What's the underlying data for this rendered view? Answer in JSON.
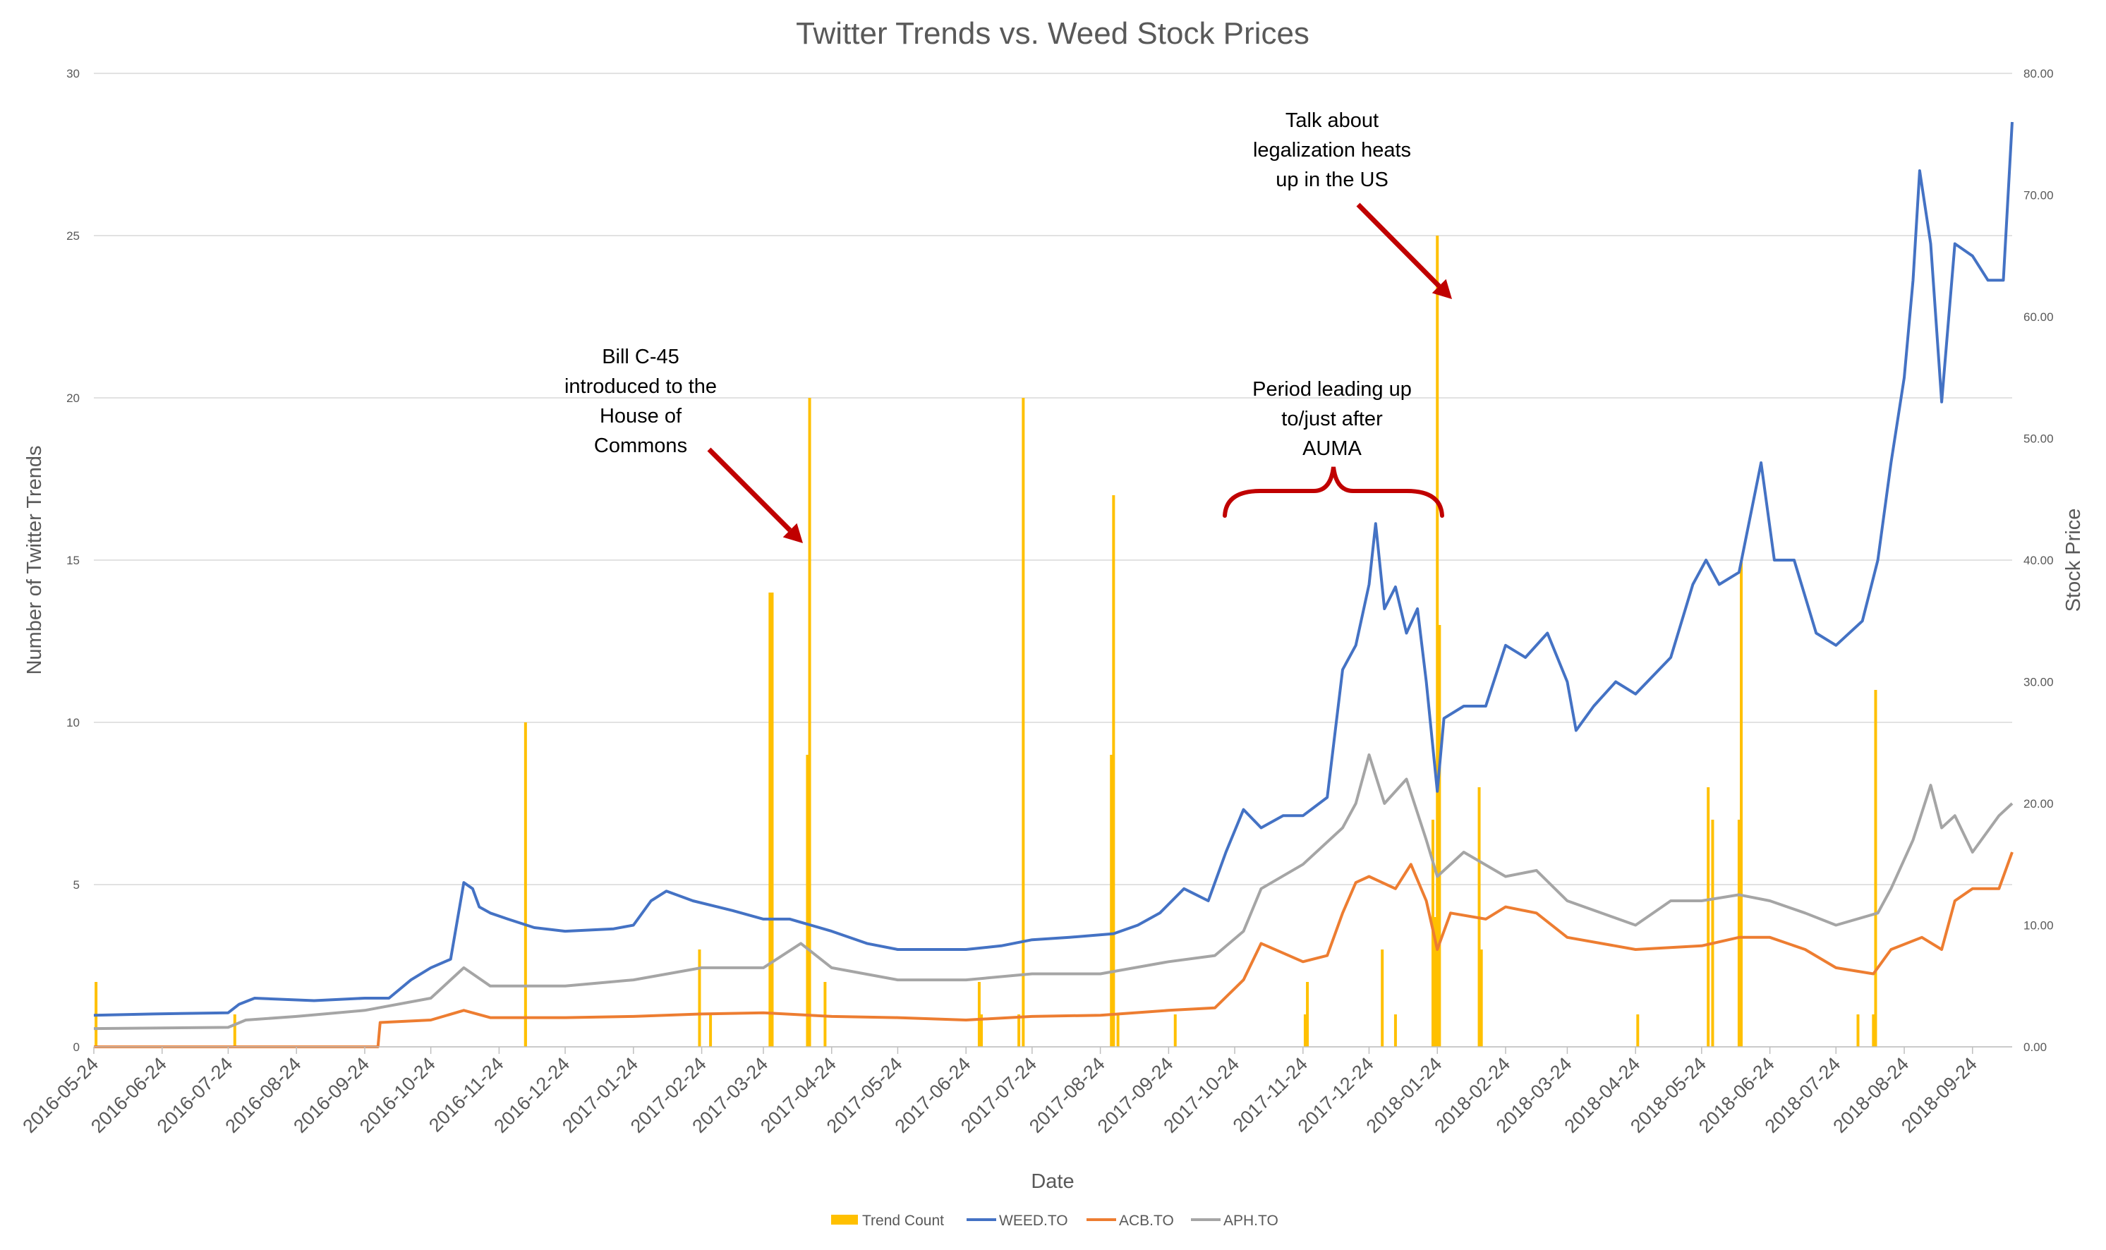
{
  "chart_data": {
    "type": "bar+line",
    "title": "Twitter Trends vs. Weed Stock Prices",
    "xlabel": "Date",
    "ylabel_left": "Number of Twitter Trends",
    "ylabel_right": "Stock Price",
    "ylim_left": [
      0,
      30
    ],
    "ylim_right": [
      0,
      80
    ],
    "xlim": [
      "2016-05-24",
      "2018-10-12"
    ],
    "grid": true,
    "legend_position": "bottom",
    "y_ticks_left": [
      "0",
      "5",
      "10",
      "15",
      "20",
      "25",
      "30"
    ],
    "y_ticks_right": [
      "0.00",
      "10.00",
      "20.00",
      "30.00",
      "40.00",
      "50.00",
      "60.00",
      "70.00",
      "80.00"
    ],
    "x_ticks": [
      "2016-05-24",
      "2016-06-24",
      "2016-07-24",
      "2016-08-24",
      "2016-09-24",
      "2016-10-24",
      "2016-11-24",
      "2016-12-24",
      "2017-01-24",
      "2017-02-24",
      "2017-03-24",
      "2017-04-24",
      "2017-05-24",
      "2017-06-24",
      "2017-07-24",
      "2017-08-24",
      "2017-09-24",
      "2017-10-24",
      "2017-11-24",
      "2017-12-24",
      "2018-01-24",
      "2018-02-24",
      "2018-03-24",
      "2018-04-24",
      "2018-05-24",
      "2018-06-24",
      "2018-07-24",
      "2018-08-24",
      "2018-09-24"
    ],
    "bars": {
      "name": "Trend Count",
      "color": "#FFC000",
      "points": [
        [
          "2016-05-25",
          2
        ],
        [
          "2016-07-27",
          1
        ],
        [
          "2016-12-06",
          10
        ],
        [
          "2016-12-06",
          1
        ],
        [
          "2017-02-23",
          3
        ],
        [
          "2017-02-28",
          1
        ],
        [
          "2017-03-27",
          14
        ],
        [
          "2017-03-28",
          14
        ],
        [
          "2017-04-13",
          9
        ],
        [
          "2017-04-14",
          20
        ],
        [
          "2017-04-21",
          2
        ],
        [
          "2017-06-30",
          2
        ],
        [
          "2017-07-01",
          1
        ],
        [
          "2017-07-18",
          1
        ],
        [
          "2017-07-20",
          20
        ],
        [
          "2017-08-29",
          9
        ],
        [
          "2017-08-30",
          17
        ],
        [
          "2017-09-01",
          1
        ],
        [
          "2017-09-27",
          1
        ],
        [
          "2017-11-25",
          1
        ],
        [
          "2017-11-26",
          2
        ],
        [
          "2017-12-33",
          0
        ],
        [
          "2017-12-30",
          3
        ],
        [
          "2018-01-05",
          1
        ],
        [
          "2018-01-22",
          7
        ],
        [
          "2018-01-23",
          4
        ],
        [
          "2018-01-24",
          25
        ],
        [
          "2018-01-25",
          13
        ],
        [
          "2018-02-12",
          8
        ],
        [
          "2018-02-13",
          3
        ],
        [
          "2018-04-25",
          1
        ],
        [
          "2018-05-27",
          8
        ],
        [
          "2018-05-29",
          7
        ],
        [
          "2018-06-10",
          7
        ],
        [
          "2018-06-11",
          15
        ],
        [
          "2018-08-03",
          1
        ],
        [
          "2018-08-10",
          1
        ],
        [
          "2018-08-11",
          11
        ]
      ]
    },
    "series": [
      {
        "name": "WEED.TO",
        "color": "#4472C4",
        "points": [
          [
            "2016-05-24",
            2.6
          ],
          [
            "2016-06-20",
            2.7
          ],
          [
            "2016-07-24",
            2.8
          ],
          [
            "2016-07-29",
            3.5
          ],
          [
            "2016-08-05",
            4.0
          ],
          [
            "2016-09-01",
            3.8
          ],
          [
            "2016-09-24",
            4.0
          ],
          [
            "2016-10-05",
            4.0
          ],
          [
            "2016-10-15",
            5.5
          ],
          [
            "2016-10-24",
            6.5
          ],
          [
            "2016-11-02",
            7.2
          ],
          [
            "2016-11-08",
            13.5
          ],
          [
            "2016-11-12",
            13.0
          ],
          [
            "2016-11-15",
            11.5
          ],
          [
            "2016-11-20",
            11.0
          ],
          [
            "2016-11-28",
            10.5
          ],
          [
            "2016-12-10",
            9.8
          ],
          [
            "2016-12-24",
            9.5
          ],
          [
            "2017-01-15",
            9.7
          ],
          [
            "2017-01-24",
            10.0
          ],
          [
            "2017-02-01",
            12.0
          ],
          [
            "2017-02-08",
            12.8
          ],
          [
            "2017-02-20",
            12.0
          ],
          [
            "2017-03-10",
            11.2
          ],
          [
            "2017-03-24",
            10.5
          ],
          [
            "2017-04-05",
            10.5
          ],
          [
            "2017-04-24",
            9.5
          ],
          [
            "2017-05-10",
            8.5
          ],
          [
            "2017-05-24",
            8.0
          ],
          [
            "2017-06-10",
            8.0
          ],
          [
            "2017-06-24",
            8.0
          ],
          [
            "2017-07-10",
            8.3
          ],
          [
            "2017-07-24",
            8.8
          ],
          [
            "2017-08-10",
            9.0
          ],
          [
            "2017-08-30",
            9.3
          ],
          [
            "2017-09-10",
            10.0
          ],
          [
            "2017-09-20",
            11.0
          ],
          [
            "2017-10-01",
            13.0
          ],
          [
            "2017-10-12",
            12.0
          ],
          [
            "2017-10-20",
            16.0
          ],
          [
            "2017-10-28",
            19.5
          ],
          [
            "2017-11-05",
            18.0
          ],
          [
            "2017-11-15",
            19.0
          ],
          [
            "2017-11-24",
            19.0
          ],
          [
            "2017-12-05",
            20.5
          ],
          [
            "2017-12-12",
            31.0
          ],
          [
            "2017-12-18",
            33.0
          ],
          [
            "2017-12-24",
            38.0
          ],
          [
            "2017-12-27",
            43.0
          ],
          [
            "2017-12-31",
            36.0
          ],
          [
            "2018-01-05",
            37.8
          ],
          [
            "2018-01-10",
            34.0
          ],
          [
            "2018-01-15",
            36.0
          ],
          [
            "2018-01-19",
            30.0
          ],
          [
            "2018-01-24",
            21.0
          ],
          [
            "2018-01-27",
            27.0
          ],
          [
            "2018-02-05",
            28.0
          ],
          [
            "2018-02-15",
            28.0
          ],
          [
            "2018-02-24",
            33.0
          ],
          [
            "2018-03-05",
            32.0
          ],
          [
            "2018-03-15",
            34.0
          ],
          [
            "2018-03-24",
            30.0
          ],
          [
            "2018-03-28",
            26.0
          ],
          [
            "2018-04-05",
            28.0
          ],
          [
            "2018-04-15",
            30.0
          ],
          [
            "2018-04-24",
            29.0
          ],
          [
            "2018-05-10",
            32.0
          ],
          [
            "2018-05-20",
            38.0
          ],
          [
            "2018-05-26",
            40.0
          ],
          [
            "2018-06-01",
            38.0
          ],
          [
            "2018-06-10",
            39.0
          ],
          [
            "2018-06-20",
            48.0
          ],
          [
            "2018-06-26",
            40.0
          ],
          [
            "2018-07-05",
            40.0
          ],
          [
            "2018-07-15",
            34.0
          ],
          [
            "2018-07-24",
            33.0
          ],
          [
            "2018-08-05",
            35.0
          ],
          [
            "2018-08-12",
            40.0
          ],
          [
            "2018-08-18",
            48.0
          ],
          [
            "2018-08-24",
            55.0
          ],
          [
            "2018-08-28",
            63.0
          ],
          [
            "2018-08-31",
            72.0
          ],
          [
            "2018-09-05",
            66.0
          ],
          [
            "2018-09-10",
            53.0
          ],
          [
            "2018-09-16",
            66.0
          ],
          [
            "2018-09-24",
            65.0
          ],
          [
            "2018-10-01",
            63.0
          ],
          [
            "2018-10-08",
            63.0
          ],
          [
            "2018-10-12",
            76.0
          ]
        ]
      },
      {
        "name": "ACB.TO",
        "color": "#ED7D31",
        "points": [
          [
            "2016-05-24",
            0.0
          ],
          [
            "2016-09-30",
            0.0
          ],
          [
            "2016-10-01",
            2.0
          ],
          [
            "2016-10-24",
            2.2
          ],
          [
            "2016-11-08",
            3.0
          ],
          [
            "2016-11-20",
            2.4
          ],
          [
            "2016-12-24",
            2.4
          ],
          [
            "2017-01-24",
            2.5
          ],
          [
            "2017-02-24",
            2.7
          ],
          [
            "2017-03-24",
            2.8
          ],
          [
            "2017-04-24",
            2.5
          ],
          [
            "2017-05-24",
            2.4
          ],
          [
            "2017-06-24",
            2.2
          ],
          [
            "2017-07-24",
            2.5
          ],
          [
            "2017-08-24",
            2.6
          ],
          [
            "2017-09-24",
            3.0
          ],
          [
            "2017-10-15",
            3.2
          ],
          [
            "2017-10-28",
            5.5
          ],
          [
            "2017-11-05",
            8.5
          ],
          [
            "2017-11-24",
            7.0
          ],
          [
            "2017-12-05",
            7.5
          ],
          [
            "2017-12-12",
            11.0
          ],
          [
            "2017-12-18",
            13.5
          ],
          [
            "2017-12-24",
            14.0
          ],
          [
            "2018-01-05",
            13.0
          ],
          [
            "2018-01-12",
            15.0
          ],
          [
            "2018-01-19",
            12.0
          ],
          [
            "2018-01-24",
            8.0
          ],
          [
            "2018-01-30",
            11.0
          ],
          [
            "2018-02-15",
            10.5
          ],
          [
            "2018-02-24",
            11.5
          ],
          [
            "2018-03-10",
            11.0
          ],
          [
            "2018-03-24",
            9.0
          ],
          [
            "2018-04-24",
            8.0
          ],
          [
            "2018-05-24",
            8.3
          ],
          [
            "2018-06-10",
            9.0
          ],
          [
            "2018-06-24",
            9.0
          ],
          [
            "2018-07-10",
            8.0
          ],
          [
            "2018-07-24",
            6.5
          ],
          [
            "2018-08-10",
            6.0
          ],
          [
            "2018-08-18",
            8.0
          ],
          [
            "2018-09-01",
            9.0
          ],
          [
            "2018-09-10",
            8.0
          ],
          [
            "2018-09-16",
            12.0
          ],
          [
            "2018-09-24",
            13.0
          ],
          [
            "2018-10-06",
            13.0
          ],
          [
            "2018-10-12",
            16.0
          ]
        ]
      },
      {
        "name": "APH.TO",
        "color": "#A5A5A5",
        "points": [
          [
            "2016-05-24",
            1.5
          ],
          [
            "2016-07-24",
            1.6
          ],
          [
            "2016-08-01",
            2.2
          ],
          [
            "2016-08-24",
            2.5
          ],
          [
            "2016-09-24",
            3.0
          ],
          [
            "2016-10-24",
            4.0
          ],
          [
            "2016-11-08",
            6.5
          ],
          [
            "2016-11-20",
            5.0
          ],
          [
            "2016-12-24",
            5.0
          ],
          [
            "2017-01-24",
            5.5
          ],
          [
            "2017-02-24",
            6.5
          ],
          [
            "2017-03-24",
            6.5
          ],
          [
            "2017-04-10",
            8.5
          ],
          [
            "2017-04-24",
            6.5
          ],
          [
            "2017-05-24",
            5.5
          ],
          [
            "2017-06-24",
            5.5
          ],
          [
            "2017-07-24",
            6.0
          ],
          [
            "2017-08-24",
            6.0
          ],
          [
            "2017-09-24",
            7.0
          ],
          [
            "2017-10-15",
            7.5
          ],
          [
            "2017-10-28",
            9.5
          ],
          [
            "2017-11-05",
            13.0
          ],
          [
            "2017-11-24",
            15.0
          ],
          [
            "2017-12-12",
            18.0
          ],
          [
            "2017-12-18",
            20.0
          ],
          [
            "2017-12-24",
            24.0
          ],
          [
            "2017-12-31",
            20.0
          ],
          [
            "2018-01-10",
            22.0
          ],
          [
            "2018-01-19",
            17.0
          ],
          [
            "2018-01-24",
            14.0
          ],
          [
            "2018-02-05",
            16.0
          ],
          [
            "2018-02-24",
            14.0
          ],
          [
            "2018-03-10",
            14.5
          ],
          [
            "2018-03-24",
            12.0
          ],
          [
            "2018-04-24",
            10.0
          ],
          [
            "2018-05-10",
            12.0
          ],
          [
            "2018-05-24",
            12.0
          ],
          [
            "2018-06-10",
            12.5
          ],
          [
            "2018-06-24",
            12.0
          ],
          [
            "2018-07-10",
            11.0
          ],
          [
            "2018-07-24",
            10.0
          ],
          [
            "2018-08-12",
            11.0
          ],
          [
            "2018-08-18",
            13.0
          ],
          [
            "2018-08-28",
            17.0
          ],
          [
            "2018-09-05",
            21.5
          ],
          [
            "2018-09-10",
            18.0
          ],
          [
            "2018-09-16",
            19.0
          ],
          [
            "2018-09-24",
            16.0
          ],
          [
            "2018-10-06",
            19.0
          ],
          [
            "2018-10-12",
            20.0
          ]
        ]
      }
    ],
    "annotations": [
      {
        "text": [
          "Bill C-45",
          "introduced to the",
          "House of",
          "Commons"
        ]
      },
      {
        "text": [
          "Talk about",
          "legalization heats",
          "up in the US"
        ]
      },
      {
        "text": [
          "Period leading up",
          "to/just after",
          "AUMA"
        ]
      }
    ],
    "annotation_color": "#C00000"
  }
}
